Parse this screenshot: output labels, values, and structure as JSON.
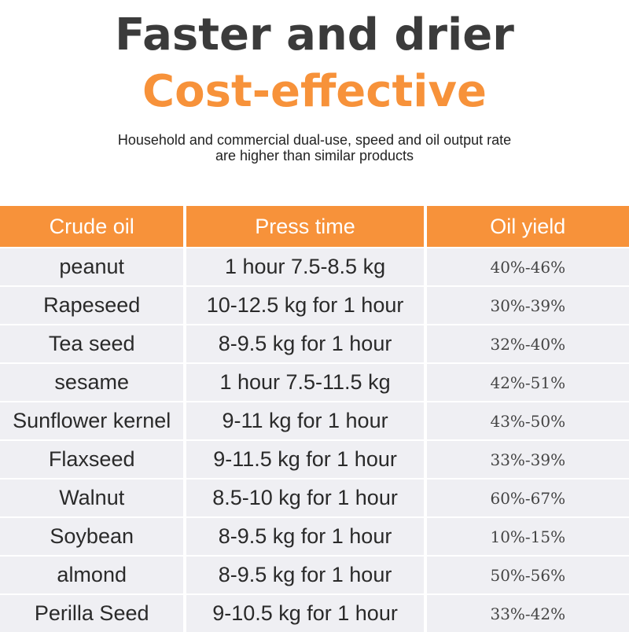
{
  "headline": {
    "line1": "Faster and drier",
    "line2": "Cost-effective"
  },
  "subtitle": {
    "line1": "Household and commercial dual-use, speed and oil output rate",
    "line2": "are higher than similar products"
  },
  "colors": {
    "accent": "#f7923a",
    "headline_dark": "#3b3b3b",
    "row_dark": "#dcdce0",
    "row_light": "#efeff3"
  },
  "table": {
    "headers": [
      "Crude oil",
      "Press time",
      "Oil yield"
    ],
    "rows": [
      [
        "peanut",
        "1 hour 7.5-8.5 kg",
        "40%-46%"
      ],
      [
        "Rapeseed",
        "10-12.5 kg for 1 hour",
        "30%-39%"
      ],
      [
        "Tea seed",
        "8-9.5 kg for 1 hour",
        "32%-40%"
      ],
      [
        "sesame",
        "1 hour 7.5-11.5 kg",
        "42%-51%"
      ],
      [
        "Sunflower kernel",
        "9-11 kg for 1 hour",
        "43%-50%"
      ],
      [
        "Flaxseed",
        "9-11.5 kg for 1 hour",
        "33%-39%"
      ],
      [
        "Walnut",
        "8.5-10 kg for 1 hour",
        "60%-67%"
      ],
      [
        "Soybean",
        "8-9.5 kg for 1 hour",
        "10%-15%"
      ],
      [
        "almond",
        "8-9.5 kg for 1 hour",
        "50%-56%"
      ],
      [
        "Perilla Seed",
        "9-10.5 kg for 1 hour",
        "33%-42%"
      ]
    ]
  }
}
